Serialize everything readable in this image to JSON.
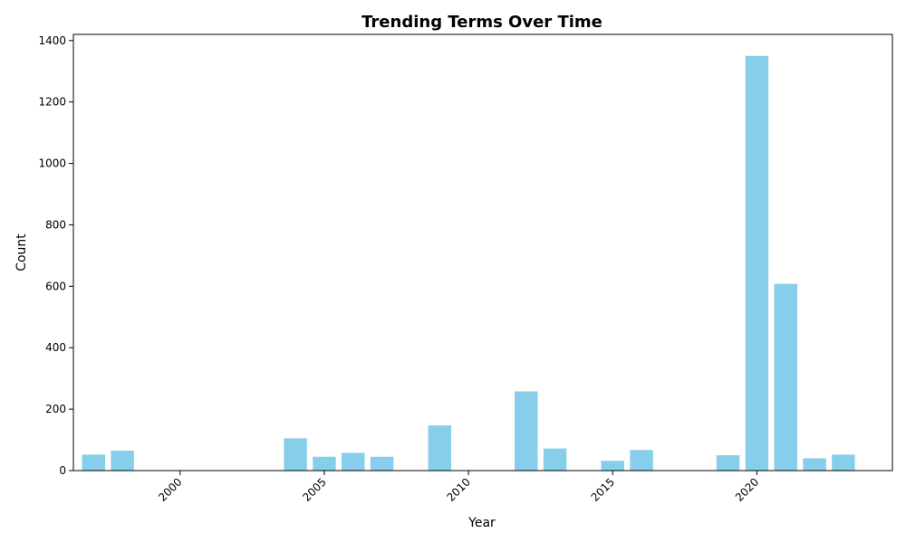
{
  "chart_data": {
    "type": "bar",
    "title": "Trending Terms Over Time",
    "xlabel": "Year",
    "ylabel": "Count",
    "x": [
      1997,
      1998,
      2004,
      2005,
      2006,
      2007,
      2009,
      2012,
      2013,
      2015,
      2016,
      2019,
      2020,
      2021,
      2022,
      2023
    ],
    "values": [
      52,
      65,
      105,
      45,
      58,
      45,
      147,
      258,
      72,
      32,
      67,
      50,
      1350,
      608,
      40,
      52
    ],
    "xlim": [
      1996.3,
      2024.7
    ],
    "ylim": [
      0,
      1420
    ],
    "xticks": [
      2000,
      2005,
      2010,
      2015,
      2020
    ],
    "xtick_labels": [
      "2000",
      "2005",
      "2010",
      "2015",
      "2020"
    ],
    "yticks": [
      0,
      200,
      400,
      600,
      800,
      1000,
      1200,
      1400
    ],
    "ytick_labels": [
      "0",
      "200",
      "400",
      "600",
      "800",
      "1000",
      "1200",
      "1400"
    ],
    "bar_color": "#87ceeb",
    "grid": false,
    "legend": "none"
  }
}
